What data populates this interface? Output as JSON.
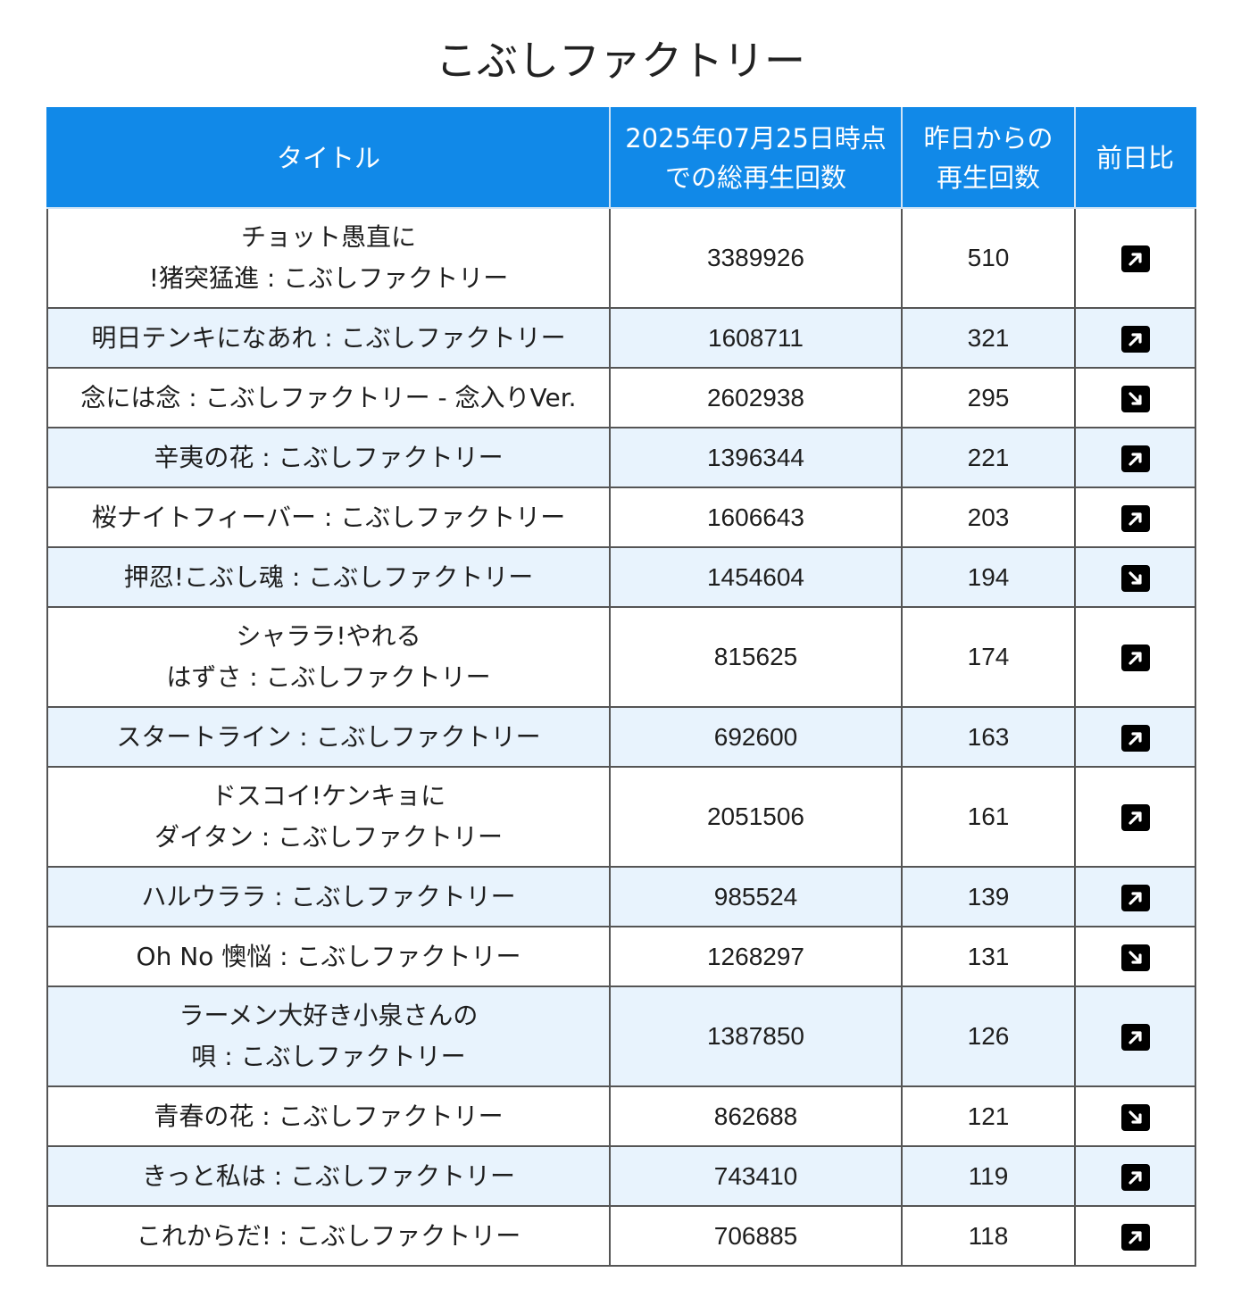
{
  "page_title": "こぶしファクトリー",
  "table": {
    "headers": {
      "title": "タイトル",
      "total": "2025年07月25日時点\nでの総再生回数",
      "since_yesterday": "昨日からの\n再生回数",
      "change": "前日比"
    },
    "rows": [
      {
        "title": "チョット愚直に\n!猪突猛進 : こぶしファクトリー",
        "total": "3389926",
        "daily": "510",
        "trend": "up-right-arrow-icon"
      },
      {
        "title": "明日テンキになあれ : こぶしファクトリー",
        "total": "1608711",
        "daily": "321",
        "trend": "up-right-arrow-icon"
      },
      {
        "title": "念には念 : こぶしファクトリー - 念入りVer.",
        "total": "2602938",
        "daily": "295",
        "trend": "down-right-arrow-icon"
      },
      {
        "title": "辛夷の花 : こぶしファクトリー",
        "total": "1396344",
        "daily": "221",
        "trend": "up-right-arrow-icon"
      },
      {
        "title": "桜ナイトフィーバー : こぶしファクトリー",
        "total": "1606643",
        "daily": "203",
        "trend": "up-right-arrow-icon"
      },
      {
        "title": "押忍!こぶし魂 : こぶしファクトリー",
        "total": "1454604",
        "daily": "194",
        "trend": "down-right-arrow-icon"
      },
      {
        "title": "シャララ!やれる\nはずさ : こぶしファクトリー",
        "total": "815625",
        "daily": "174",
        "trend": "up-right-arrow-icon"
      },
      {
        "title": "スタートライン : こぶしファクトリー",
        "total": "692600",
        "daily": "163",
        "trend": "up-right-arrow-icon"
      },
      {
        "title": "ドスコイ!ケンキョに\nダイタン : こぶしファクトリー",
        "total": "2051506",
        "daily": "161",
        "trend": "up-right-arrow-icon"
      },
      {
        "title": "ハルウララ : こぶしファクトリー",
        "total": "985524",
        "daily": "139",
        "trend": "up-right-arrow-icon"
      },
      {
        "title": "Oh No 懊悩 : こぶしファクトリー",
        "total": "1268297",
        "daily": "131",
        "trend": "down-right-arrow-icon"
      },
      {
        "title": "ラーメン大好き小泉さんの\n唄 : こぶしファクトリー",
        "total": "1387850",
        "daily": "126",
        "trend": "up-right-arrow-icon"
      },
      {
        "title": "青春の花 : こぶしファクトリー",
        "total": "862688",
        "daily": "121",
        "trend": "down-right-arrow-icon"
      },
      {
        "title": "きっと私は : こぶしファクトリー",
        "total": "743410",
        "daily": "119",
        "trend": "up-right-arrow-icon"
      },
      {
        "title": "これからだ! : こぶしファクトリー",
        "total": "706885",
        "daily": "118",
        "trend": "up-right-arrow-icon"
      }
    ]
  },
  "colors": {
    "header_bg": "#1189e8",
    "stripe_bg": "#e8f3fd"
  }
}
